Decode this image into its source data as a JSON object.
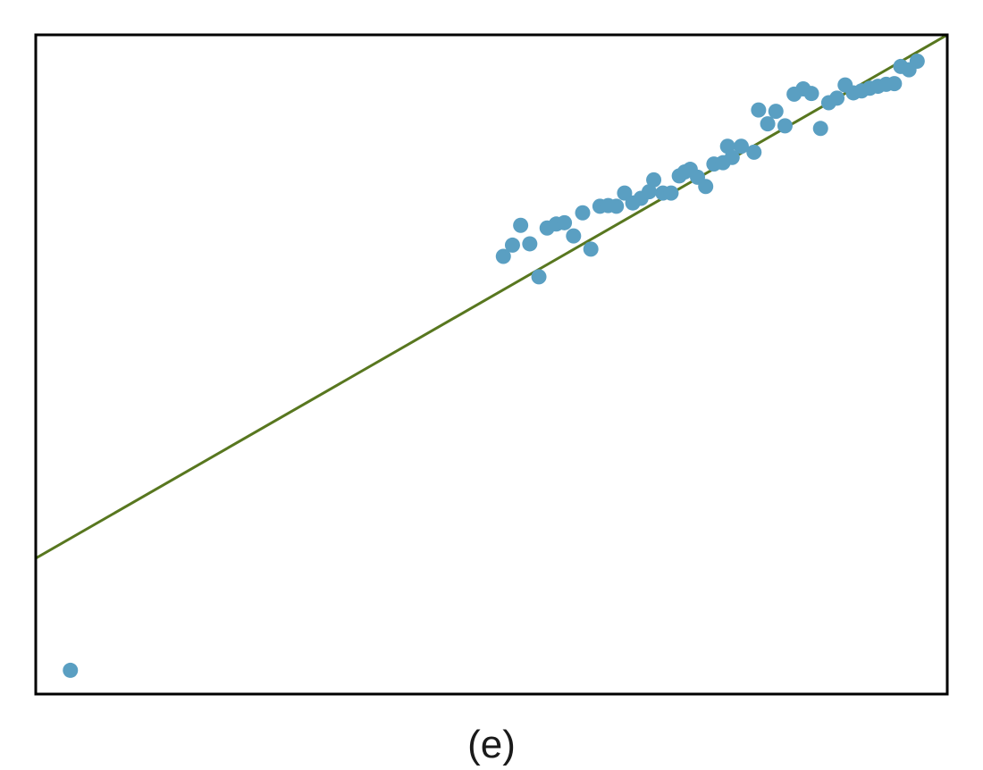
{
  "caption": "(e)",
  "colors": {
    "point": "#5a9fc2",
    "line": "#58771f",
    "frame": "#000000"
  },
  "chart_data": {
    "type": "scatter",
    "title": "",
    "xlabel": "",
    "ylabel": "",
    "xlim": [
      0,
      100
    ],
    "ylim": [
      0,
      100
    ],
    "grid": false,
    "regression_line": {
      "x": [
        0,
        100
      ],
      "y": [
        20.6,
        100
      ]
    },
    "points": [
      {
        "x": 3.8,
        "y": 3.6
      },
      {
        "x": 51.3,
        "y": 66.4
      },
      {
        "x": 52.3,
        "y": 68.1
      },
      {
        "x": 53.2,
        "y": 71.1
      },
      {
        "x": 54.2,
        "y": 68.3
      },
      {
        "x": 55.2,
        "y": 63.3
      },
      {
        "x": 56.1,
        "y": 70.7
      },
      {
        "x": 57.1,
        "y": 71.3
      },
      {
        "x": 58.0,
        "y": 71.5
      },
      {
        "x": 59.0,
        "y": 69.5
      },
      {
        "x": 60.0,
        "y": 73.0
      },
      {
        "x": 60.9,
        "y": 67.5
      },
      {
        "x": 61.9,
        "y": 74.0
      },
      {
        "x": 62.8,
        "y": 74.1
      },
      {
        "x": 63.7,
        "y": 74.0
      },
      {
        "x": 64.6,
        "y": 76.0
      },
      {
        "x": 65.5,
        "y": 74.5
      },
      {
        "x": 66.4,
        "y": 75.2
      },
      {
        "x": 67.3,
        "y": 76.2
      },
      {
        "x": 67.8,
        "y": 78.0
      },
      {
        "x": 68.8,
        "y": 76.0
      },
      {
        "x": 69.7,
        "y": 76.0
      },
      {
        "x": 70.6,
        "y": 78.6
      },
      {
        "x": 71.2,
        "y": 79.2
      },
      {
        "x": 71.8,
        "y": 79.6
      },
      {
        "x": 72.6,
        "y": 78.4
      },
      {
        "x": 73.5,
        "y": 77.0
      },
      {
        "x": 74.4,
        "y": 80.4
      },
      {
        "x": 75.4,
        "y": 80.6
      },
      {
        "x": 75.9,
        "y": 83.1
      },
      {
        "x": 76.4,
        "y": 81.4
      },
      {
        "x": 77.4,
        "y": 83.1
      },
      {
        "x": 78.8,
        "y": 82.2
      },
      {
        "x": 79.3,
        "y": 88.6
      },
      {
        "x": 80.3,
        "y": 86.5
      },
      {
        "x": 81.2,
        "y": 88.4
      },
      {
        "x": 82.2,
        "y": 86.2
      },
      {
        "x": 83.2,
        "y": 91.0
      },
      {
        "x": 84.2,
        "y": 91.8
      },
      {
        "x": 85.1,
        "y": 91.1
      },
      {
        "x": 86.1,
        "y": 85.8
      },
      {
        "x": 87.0,
        "y": 89.7
      },
      {
        "x": 87.9,
        "y": 90.4
      },
      {
        "x": 88.8,
        "y": 92.4
      },
      {
        "x": 89.7,
        "y": 91.2
      },
      {
        "x": 90.6,
        "y": 91.5
      },
      {
        "x": 91.5,
        "y": 91.9
      },
      {
        "x": 92.4,
        "y": 92.2
      },
      {
        "x": 93.3,
        "y": 92.5
      },
      {
        "x": 94.2,
        "y": 92.6
      },
      {
        "x": 94.9,
        "y": 95.2
      },
      {
        "x": 95.8,
        "y": 94.7
      },
      {
        "x": 96.7,
        "y": 96.0
      }
    ]
  }
}
